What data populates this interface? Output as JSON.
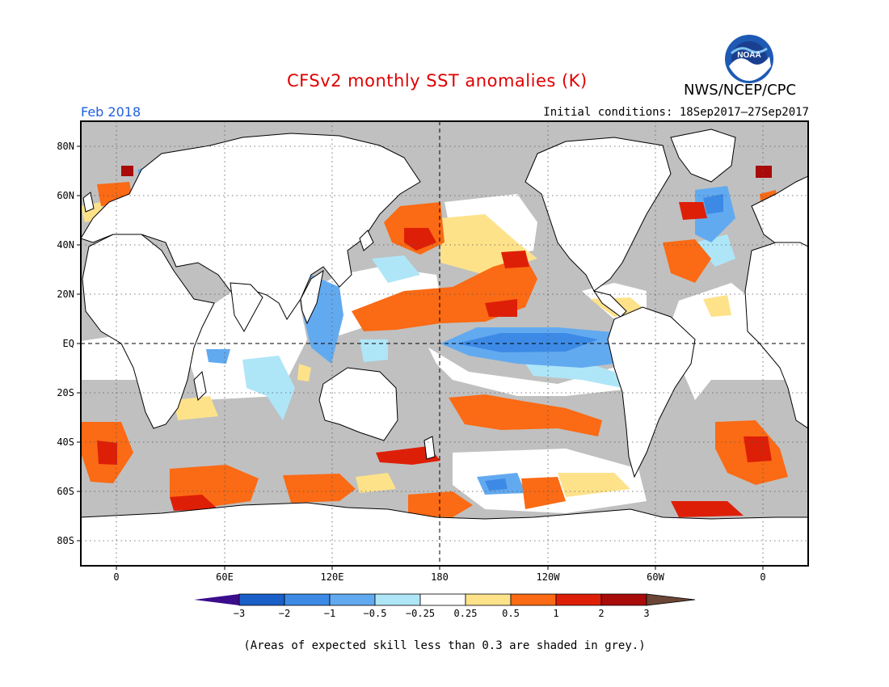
{
  "header": {
    "title": "CFSv2 monthly SST anomalies (K)",
    "agency": "NWS/NCEP/CPC",
    "logo_text": "NOAA",
    "month": "Feb 2018",
    "initial_conditions": "Initial conditions: 18Sep2017–27Sep2017"
  },
  "map": {
    "lat_labels": [
      "80N",
      "60N",
      "40N",
      "20N",
      "EQ",
      "20S",
      "40S",
      "60S",
      "80S"
    ],
    "lon_labels": [
      "0",
      "60E",
      "120E",
      "180",
      "120W",
      "60W",
      "0"
    ],
    "land_color": "#ffffff",
    "low_skill_color": "#c0c0c0"
  },
  "colorbar": {
    "tick_labels": [
      "−3",
      "−2",
      "−1",
      "−0.5",
      "−0.25",
      "0.25",
      "0.5",
      "1",
      "2",
      "3"
    ],
    "colors": [
      "#3b0c8c",
      "#1a5fc8",
      "#3c8ae6",
      "#62aaf0",
      "#aee6f8",
      "#ffffff",
      "#fde28a",
      "#fb6a14",
      "#de1f08",
      "#a90a0a",
      "#6b4535"
    ]
  },
  "footnote": "(Areas of expected skill less than 0.3 are shaded in grey.)"
}
